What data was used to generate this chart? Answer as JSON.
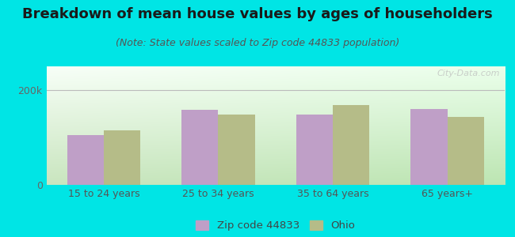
{
  "title": "Breakdown of mean house values by ages of householders",
  "subtitle": "(Note: State values scaled to Zip code 44833 population)",
  "categories": [
    "15 to 24 years",
    "25 to 34 years",
    "35 to 64 years",
    "65 years+"
  ],
  "zip_values": [
    105000,
    158000,
    148000,
    160000
  ],
  "ohio_values": [
    115000,
    148000,
    168000,
    143000
  ],
  "zip_color": "#bf9fc7",
  "ohio_color": "#b5bc88",
  "ylim": [
    0,
    250000
  ],
  "yticks": [
    0,
    200000
  ],
  "ytick_labels": [
    "0",
    "200k"
  ],
  "legend_zip": "Zip code 44833",
  "legend_ohio": "Ohio",
  "bg_color": "#00e5e5",
  "watermark": "City-Data.com",
  "title_fontsize": 13,
  "subtitle_fontsize": 9,
  "bar_width": 0.32
}
